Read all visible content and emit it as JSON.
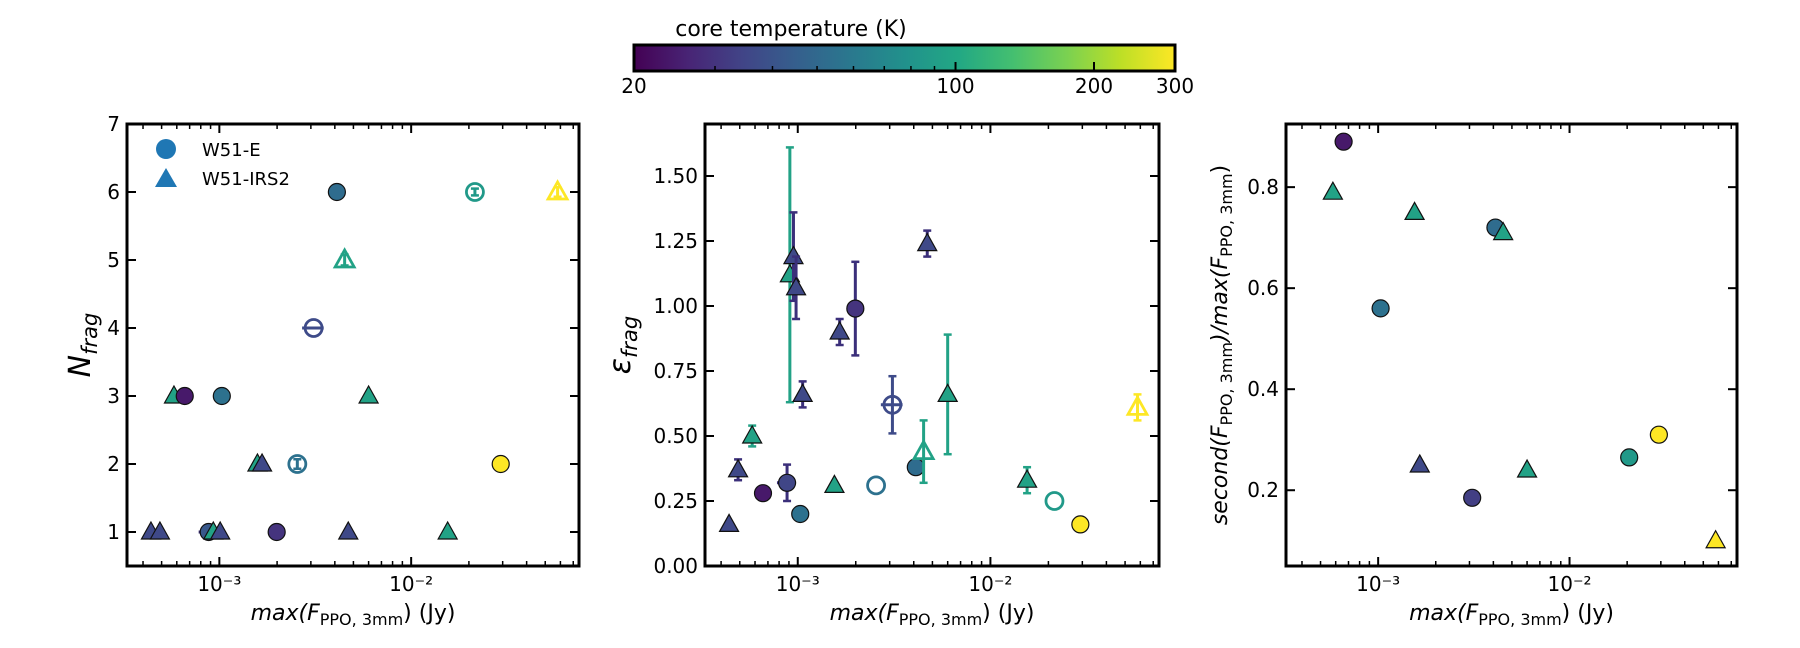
{
  "colorbar": {
    "title": "core temperature (K)",
    "scale": "log",
    "range": [
      20,
      300
    ],
    "ticks": [
      "20",
      "100",
      "200",
      "300"
    ],
    "tick_values": [
      20,
      100,
      200,
      300
    ],
    "colormap": "viridis"
  },
  "legend": {
    "placement": "upper-left",
    "entries": [
      {
        "label": "W51-E",
        "marker": "circle",
        "color": "#1f77b4"
      },
      {
        "label": "W51-IRS2",
        "marker": "triangle",
        "color": "#1f77b4"
      }
    ]
  },
  "chart_data": [
    {
      "type": "scatter",
      "xlabel_prefix": "max",
      "xlabel_var": "F",
      "xlabel_sub": "PPO, 3mm",
      "xlabel_unit": " (Jy)",
      "ylabel_main": "N",
      "ylabel_sub": "frag",
      "xscale": "log",
      "xlim": [
        0.00033,
        0.075
      ],
      "ylim": [
        0.5,
        7
      ],
      "xtick_labels": [
        "10⁻³",
        "10⁻²"
      ],
      "ytick_labels": [
        "1",
        "2",
        "3",
        "4",
        "5",
        "6",
        "7"
      ],
      "ytick_values": [
        1,
        2,
        3,
        4,
        5,
        6,
        7
      ],
      "points": [
        {
          "x": 0.00044,
          "y": 1,
          "m": "triangle",
          "T": 36,
          "open": false
        },
        {
          "x": 0.00049,
          "y": 1,
          "m": "triangle",
          "T": 36,
          "open": false
        },
        {
          "x": 0.00058,
          "y": 3,
          "m": "triangle",
          "T": 95,
          "open": false
        },
        {
          "x": 0.00066,
          "y": 3,
          "m": "circle",
          "T": 24,
          "open": false
        },
        {
          "x": 0.00088,
          "y": 1,
          "m": "circle",
          "T": 42,
          "open": false,
          "xerr": 0.0001
        },
        {
          "x": 0.00093,
          "y": 1,
          "m": "triangle",
          "T": 95,
          "open": false
        },
        {
          "x": 0.00101,
          "y": 1,
          "m": "triangle",
          "T": 36,
          "open": false
        },
        {
          "x": 0.00103,
          "y": 3,
          "m": "circle",
          "T": 55,
          "open": false
        },
        {
          "x": 0.00158,
          "y": 2,
          "m": "triangle",
          "T": 95,
          "open": false
        },
        {
          "x": 0.00167,
          "y": 2,
          "m": "triangle",
          "T": 36,
          "open": false
        },
        {
          "x": 0.00199,
          "y": 1,
          "m": "circle",
          "T": 30,
          "open": false
        },
        {
          "x": 0.00255,
          "y": 2,
          "m": "circle",
          "T": 55,
          "open": true,
          "yerr": 0.07
        },
        {
          "x": 0.0031,
          "y": 4,
          "m": "circle",
          "T": 37,
          "open": true,
          "xerr": 0.0004
        },
        {
          "x": 0.0041,
          "y": 6,
          "m": "circle",
          "T": 52,
          "open": false
        },
        {
          "x": 0.0045,
          "y": 5,
          "m": "triangle",
          "T": 95,
          "open": true,
          "yerr": 0.08
        },
        {
          "x": 0.0047,
          "y": 1,
          "m": "triangle",
          "T": 36,
          "open": false
        },
        {
          "x": 0.006,
          "y": 3,
          "m": "triangle",
          "T": 95,
          "open": false
        },
        {
          "x": 0.0155,
          "y": 1,
          "m": "triangle",
          "T": 95,
          "open": false
        },
        {
          "x": 0.0215,
          "y": 6,
          "m": "circle",
          "T": 85,
          "open": true,
          "yerr": 0.05
        },
        {
          "x": 0.0293,
          "y": 2,
          "m": "circle",
          "T": 300,
          "open": false
        },
        {
          "x": 0.058,
          "y": 6,
          "m": "triangle",
          "T": 300,
          "open": true,
          "yerr": 0.07
        }
      ]
    },
    {
      "type": "scatter",
      "xlabel_prefix": "max",
      "xlabel_var": "F",
      "xlabel_sub": "PPO, 3mm",
      "xlabel_unit": " (Jy)",
      "ylabel_main": "ε",
      "ylabel_sub": "frag",
      "xscale": "log",
      "xlim": [
        0.00033,
        0.075
      ],
      "ylim": [
        0,
        1.7
      ],
      "xtick_labels": [
        "10⁻³",
        "10⁻²"
      ],
      "ytick_labels": [
        "0.00",
        "0.25",
        "0.50",
        "0.75",
        "1.00",
        "1.25",
        "1.50"
      ],
      "ytick_values": [
        0,
        0.25,
        0.5,
        0.75,
        1.0,
        1.25,
        1.5
      ],
      "points": [
        {
          "x": 0.00044,
          "y": 0.16,
          "m": "triangle",
          "T": 36,
          "open": false
        },
        {
          "x": 0.00049,
          "y": 0.37,
          "m": "triangle",
          "T": 36,
          "open": false,
          "yerr": 0.04
        },
        {
          "x": 0.00058,
          "y": 0.5,
          "m": "triangle",
          "T": 95,
          "open": false,
          "yerr": 0.04
        },
        {
          "x": 0.00066,
          "y": 0.28,
          "m": "circle",
          "T": 24,
          "open": false
        },
        {
          "x": 0.00088,
          "y": 0.32,
          "m": "circle",
          "T": 35,
          "open": false,
          "yerr": 0.07,
          "xerr": 0.0001
        },
        {
          "x": 0.00091,
          "y": 1.12,
          "m": "triangle",
          "T": 95,
          "open": false,
          "yerr": 0.49
        },
        {
          "x": 0.00095,
          "y": 1.19,
          "m": "triangle",
          "T": 36,
          "open": false,
          "yerr": 0.17
        },
        {
          "x": 0.00098,
          "y": 1.07,
          "m": "triangle",
          "T": 36,
          "open": false,
          "yerr": 0.12
        },
        {
          "x": 0.00103,
          "y": 0.2,
          "m": "circle",
          "T": 55,
          "open": false
        },
        {
          "x": 0.00106,
          "y": 0.66,
          "m": "triangle",
          "T": 36,
          "open": false,
          "yerr": 0.05
        },
        {
          "x": 0.00155,
          "y": 0.31,
          "m": "triangle",
          "T": 95,
          "open": false
        },
        {
          "x": 0.00165,
          "y": 0.9,
          "m": "triangle",
          "T": 36,
          "open": false,
          "yerr": 0.05
        },
        {
          "x": 0.00199,
          "y": 0.99,
          "m": "circle",
          "T": 30,
          "open": false,
          "yerr": 0.18
        },
        {
          "x": 0.00255,
          "y": 0.31,
          "m": "circle",
          "T": 55,
          "open": true
        },
        {
          "x": 0.0031,
          "y": 0.62,
          "m": "circle",
          "T": 37,
          "open": true,
          "yerr": 0.11,
          "xerr": 0.0004
        },
        {
          "x": 0.0041,
          "y": 0.38,
          "m": "circle",
          "T": 52,
          "open": false
        },
        {
          "x": 0.0045,
          "y": 0.44,
          "m": "triangle",
          "T": 95,
          "open": true,
          "yerr": 0.12
        },
        {
          "x": 0.0047,
          "y": 1.24,
          "m": "triangle",
          "T": 36,
          "open": false,
          "yerr": 0.05
        },
        {
          "x": 0.006,
          "y": 0.66,
          "m": "triangle",
          "T": 95,
          "open": false,
          "yerr": 0.23
        },
        {
          "x": 0.0155,
          "y": 0.33,
          "m": "triangle",
          "T": 95,
          "open": false,
          "yerr": 0.05
        },
        {
          "x": 0.0215,
          "y": 0.25,
          "m": "circle",
          "T": 85,
          "open": true
        },
        {
          "x": 0.0293,
          "y": 0.16,
          "m": "circle",
          "T": 300,
          "open": false
        },
        {
          "x": 0.058,
          "y": 0.61,
          "m": "triangle",
          "T": 300,
          "open": true,
          "yerr": 0.05
        }
      ]
    },
    {
      "type": "scatter",
      "xlabel_prefix": "max",
      "xlabel_var": "F",
      "xlabel_sub": "PPO, 3mm",
      "xlabel_unit": " (Jy)",
      "ylabel_main": "second(F",
      "ylabel_sub": "PPO, 3mm",
      "ylabel_mid": ")/max(F",
      "ylabel_sub2": "PPO, 3mm",
      "ylabel_end": ")",
      "xscale": "log",
      "xlim": [
        0.00033,
        0.075
      ],
      "ylim": [
        0.05,
        0.925
      ],
      "xtick_labels": [
        "10⁻³",
        "10⁻²"
      ],
      "ytick_labels": [
        "0.2",
        "0.4",
        "0.6",
        "0.8"
      ],
      "ytick_values": [
        0.2,
        0.4,
        0.6,
        0.8
      ],
      "points": [
        {
          "x": 0.00058,
          "y": 0.79,
          "m": "triangle",
          "T": 95,
          "open": false
        },
        {
          "x": 0.00066,
          "y": 0.89,
          "m": "circle",
          "T": 24,
          "open": false
        },
        {
          "x": 0.00103,
          "y": 0.56,
          "m": "circle",
          "T": 55,
          "open": false
        },
        {
          "x": 0.00155,
          "y": 0.75,
          "m": "triangle",
          "T": 95,
          "open": false
        },
        {
          "x": 0.00165,
          "y": 0.25,
          "m": "triangle",
          "T": 36,
          "open": false
        },
        {
          "x": 0.0031,
          "y": 0.185,
          "m": "circle",
          "T": 33,
          "open": false
        },
        {
          "x": 0.0041,
          "y": 0.72,
          "m": "circle",
          "T": 52,
          "open": false
        },
        {
          "x": 0.0045,
          "y": 0.71,
          "m": "triangle",
          "T": 95,
          "open": false
        },
        {
          "x": 0.006,
          "y": 0.24,
          "m": "triangle",
          "T": 95,
          "open": false
        },
        {
          "x": 0.0205,
          "y": 0.265,
          "m": "circle",
          "T": 85,
          "open": false
        },
        {
          "x": 0.0293,
          "y": 0.31,
          "m": "circle",
          "T": 300,
          "open": false
        },
        {
          "x": 0.058,
          "y": 0.1,
          "m": "triangle",
          "T": 300,
          "open": false
        }
      ]
    }
  ]
}
